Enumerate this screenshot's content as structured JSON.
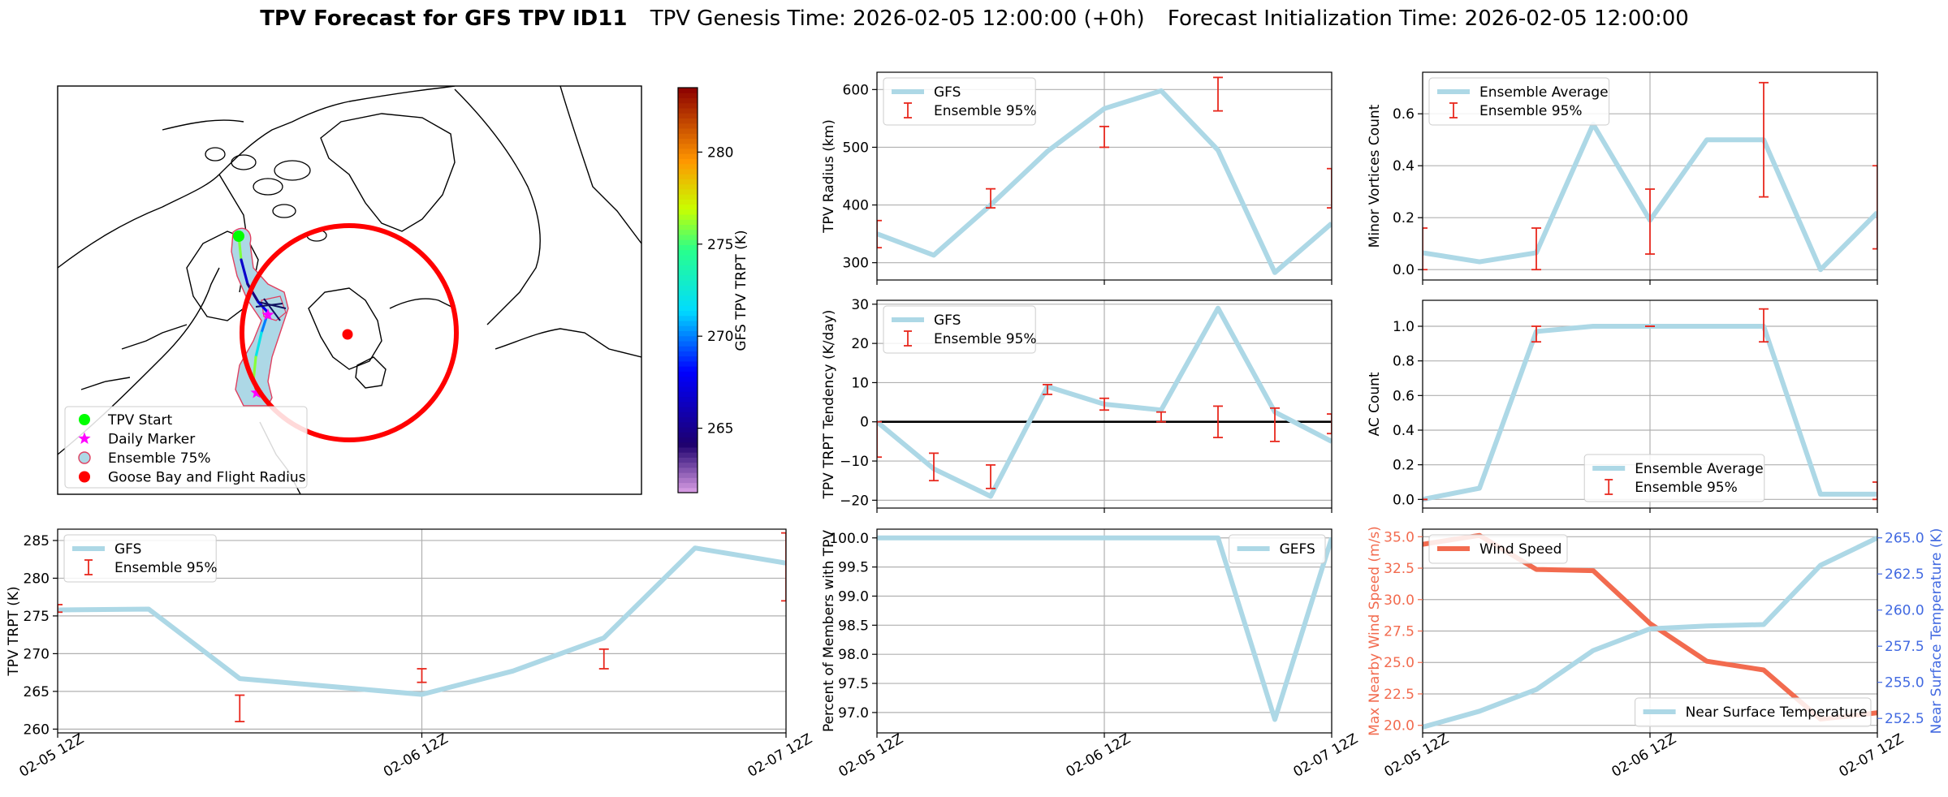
{
  "suptitle": {
    "bold": "TPV Forecast for GFS TPV ID11",
    "genesis": "TPV Genesis Time: 2026-02-05 12:00:00 (+0h)",
    "init": "Forecast Initialization Time: 2026-02-05 12:00:00"
  },
  "colors": {
    "gfs_line": "#add8e6",
    "errorbar": "#e8281e",
    "wind": "#f26b4f",
    "temp_axis": "#4169e1",
    "goose": "#ff0000",
    "start": "#00ff00",
    "marker": "#ff00ff",
    "ensemble_fill": "#add8e6",
    "ensemble_edge": "#e04060"
  },
  "map": {
    "colorbar": {
      "label": "GFS TPV TRPT (K)",
      "ticks": [
        {
          "v": 265,
          "t": "265"
        },
        {
          "v": 270,
          "t": "270"
        },
        {
          "v": 275,
          "t": "275"
        },
        {
          "v": 280,
          "t": "280"
        }
      ],
      "vmin": 261.5,
      "vmax": 283.5
    },
    "legend": [
      "TPV Start",
      "Daily Marker",
      "Ensemble 75%",
      "Goose Bay and Flight Radius"
    ]
  },
  "chart_data": [
    {
      "id": "trpt",
      "type": "line",
      "title": "",
      "xlabel": "",
      "ylabel": "TPV TRPT (K)",
      "x": [
        0,
        6,
        12,
        18,
        24,
        30,
        36,
        42,
        48
      ],
      "xticks": [
        {
          "v": 0,
          "t": "02-05 12Z"
        },
        {
          "v": 24,
          "t": "02-06 12Z"
        },
        {
          "v": 48,
          "t": "02-07 12Z"
        }
      ],
      "xlim": [
        0,
        48
      ],
      "ylim": [
        259.5,
        286.5
      ],
      "yticks": [
        {
          "v": 260,
          "t": "260"
        },
        {
          "v": 265,
          "t": "265"
        },
        {
          "v": 270,
          "t": "270"
        },
        {
          "v": 275,
          "t": "275"
        },
        {
          "v": 280,
          "t": "280"
        },
        {
          "v": 285,
          "t": "285"
        }
      ],
      "series": [
        {
          "name": "GFS",
          "values": [
            275.8,
            275.9,
            266.7,
            null,
            264.6,
            267.7,
            272.1,
            284.0,
            282.0
          ]
        }
      ],
      "errorbars": {
        "name": "Ensemble 95%",
        "x": [
          0,
          12,
          24,
          36,
          48
        ],
        "low": [
          275.5,
          261.0,
          266.2,
          268.0,
          277.0
        ],
        "high": [
          276.5,
          264.5,
          268.0,
          270.6,
          286.0
        ]
      },
      "legend": "upper left"
    },
    {
      "id": "radius",
      "type": "line",
      "title": "",
      "xlabel": "",
      "ylabel": "TPV Radius (km)",
      "x": [
        0,
        6,
        12,
        18,
        24,
        30,
        36,
        42,
        48
      ],
      "xticks": [
        {
          "v": 0,
          "t": ""
        },
        {
          "v": 24,
          "t": ""
        },
        {
          "v": 48,
          "t": ""
        }
      ],
      "xlim": [
        0,
        48
      ],
      "ylim": [
        270,
        630
      ],
      "yticks": [
        {
          "v": 300,
          "t": "300"
        },
        {
          "v": 400,
          "t": "400"
        },
        {
          "v": 500,
          "t": "500"
        },
        {
          "v": 600,
          "t": "600"
        }
      ],
      "series": [
        {
          "name": "GFS",
          "values": [
            350,
            313,
            400,
            493,
            567,
            598,
            495,
            283,
            368
          ]
        }
      ],
      "errorbars": {
        "name": "Ensemble 95%",
        "x": [
          0,
          12,
          24,
          36,
          48
        ],
        "low": [
          326,
          395,
          500,
          563,
          395
        ],
        "high": [
          373,
          428,
          536,
          621,
          463
        ]
      },
      "legend": "upper left"
    },
    {
      "id": "tendency",
      "type": "line",
      "title": "",
      "xlabel": "",
      "ylabel": "TPV TRPT Tendency (K/day)",
      "x": [
        0,
        6,
        12,
        18,
        24,
        30,
        36,
        42,
        48
      ],
      "xticks": [
        {
          "v": 0,
          "t": ""
        },
        {
          "v": 24,
          "t": ""
        },
        {
          "v": 48,
          "t": ""
        }
      ],
      "xlim": [
        0,
        48
      ],
      "ylim": [
        -22,
        31
      ],
      "yticks": [
        {
          "v": -20,
          "t": "−20"
        },
        {
          "v": -10,
          "t": "−10"
        },
        {
          "v": 0,
          "t": "0"
        },
        {
          "v": 10,
          "t": "10"
        },
        {
          "v": 20,
          "t": "20"
        },
        {
          "v": 30,
          "t": "30"
        }
      ],
      "zeroline": true,
      "series": [
        {
          "name": "GFS",
          "values": [
            0,
            -12,
            -19,
            9,
            4.5,
            3,
            29,
            2.5,
            -5
          ]
        }
      ],
      "errorbars": {
        "name": "Ensemble 95%",
        "x": [
          0,
          6,
          12,
          18,
          24,
          30,
          36,
          42,
          48
        ],
        "low": [
          -9,
          -15,
          -17,
          7,
          3,
          0,
          -4,
          -5,
          -3
        ],
        "high": [
          0,
          -8,
          -11,
          9.5,
          6,
          2.5,
          4,
          3.5,
          2
        ]
      },
      "legend": "upper left"
    },
    {
      "id": "members",
      "type": "line",
      "title": "",
      "xlabel": "",
      "ylabel": "Percent of Members with TPV",
      "x": [
        0,
        6,
        12,
        18,
        24,
        30,
        36,
        42,
        48
      ],
      "xticks": [
        {
          "v": 0,
          "t": "02-05 12Z"
        },
        {
          "v": 24,
          "t": "02-06 12Z"
        },
        {
          "v": 48,
          "t": "02-07 12Z"
        }
      ],
      "xlim": [
        0,
        48
      ],
      "ylim": [
        96.65,
        100.15
      ],
      "yticks": [
        {
          "v": 97.0,
          "t": "97.0"
        },
        {
          "v": 97.5,
          "t": "97.5"
        },
        {
          "v": 98.0,
          "t": "98.0"
        },
        {
          "v": 98.5,
          "t": "98.5"
        },
        {
          "v": 99.0,
          "t": "99.0"
        },
        {
          "v": 99.5,
          "t": "99.5"
        },
        {
          "v": 100.0,
          "t": "100.0"
        }
      ],
      "series": [
        {
          "name": "GEFS",
          "values": [
            100,
            100,
            100,
            100,
            100,
            100,
            100,
            96.88,
            100
          ]
        }
      ],
      "legend": "upper right"
    },
    {
      "id": "minor",
      "type": "line",
      "title": "",
      "xlabel": "",
      "ylabel": "Minor Vortices Count",
      "x": [
        0,
        6,
        12,
        18,
        24,
        30,
        36,
        42,
        48
      ],
      "xticks": [
        {
          "v": 0,
          "t": ""
        },
        {
          "v": 24,
          "t": ""
        },
        {
          "v": 48,
          "t": ""
        }
      ],
      "xlim": [
        0,
        48
      ],
      "ylim": [
        -0.04,
        0.76
      ],
      "yticks": [
        {
          "v": 0.0,
          "t": "0.0"
        },
        {
          "v": 0.2,
          "t": "0.2"
        },
        {
          "v": 0.4,
          "t": "0.4"
        },
        {
          "v": 0.6,
          "t": "0.6"
        }
      ],
      "series": [
        {
          "name": "Ensemble Average",
          "values": [
            0.065,
            0.03,
            0.065,
            0.56,
            0.19,
            0.5,
            0.5,
            0.0,
            0.22
          ]
        }
      ],
      "errorbars": {
        "name": "Ensemble 95%",
        "x": [
          0,
          12,
          24,
          36,
          48
        ],
        "low": [
          0.0,
          0.0,
          0.06,
          0.28,
          0.08
        ],
        "high": [
          0.16,
          0.16,
          0.31,
          0.72,
          0.4
        ]
      },
      "legend": "upper left"
    },
    {
      "id": "ac",
      "type": "line",
      "title": "",
      "xlabel": "",
      "ylabel": "AC Count",
      "x": [
        0,
        6,
        12,
        18,
        24,
        30,
        36,
        42,
        48
      ],
      "xticks": [
        {
          "v": 0,
          "t": ""
        },
        {
          "v": 24,
          "t": ""
        },
        {
          "v": 48,
          "t": ""
        }
      ],
      "xlim": [
        0,
        48
      ],
      "ylim": [
        -0.05,
        1.15
      ],
      "yticks": [
        {
          "v": 0.0,
          "t": "0.0"
        },
        {
          "v": 0.2,
          "t": "0.2"
        },
        {
          "v": 0.4,
          "t": "0.4"
        },
        {
          "v": 0.6,
          "t": "0.6"
        },
        {
          "v": 0.8,
          "t": "0.8"
        },
        {
          "v": 1.0,
          "t": "1.0"
        }
      ],
      "series": [
        {
          "name": "Ensemble Average",
          "values": [
            0.0,
            0.065,
            0.97,
            1.0,
            1.0,
            1.0,
            1.0,
            0.03,
            0.03
          ]
        }
      ],
      "errorbars": {
        "name": "Ensemble 95%",
        "x": [
          0,
          12,
          24,
          36,
          48
        ],
        "low": [
          0.0,
          0.91,
          1.0,
          0.91,
          0.0
        ],
        "high": [
          0.0,
          1.0,
          1.0,
          1.1,
          0.1
        ]
      },
      "legend": "lower center"
    },
    {
      "id": "wind",
      "type": "line",
      "title": "",
      "xlabel": "",
      "ylabel": "Max Nearby Wind Speed (m/s)",
      "ylabel_right": "Near Surface Temperature (K)",
      "x": [
        0,
        6,
        12,
        18,
        24,
        30,
        36,
        42,
        48
      ],
      "xticks": [
        {
          "v": 0,
          "t": "02-05 12Z"
        },
        {
          "v": 24,
          "t": "02-06 12Z"
        },
        {
          "v": 48,
          "t": "02-07 12Z"
        }
      ],
      "xlim": [
        0,
        48
      ],
      "ylim": [
        19.4,
        35.6
      ],
      "ylim_right": [
        251.5,
        265.6
      ],
      "yticks": [
        {
          "v": 20.0,
          "t": "20.0"
        },
        {
          "v": 22.5,
          "t": "22.5"
        },
        {
          "v": 25.0,
          "t": "25.0"
        },
        {
          "v": 27.5,
          "t": "27.5"
        },
        {
          "v": 30.0,
          "t": "30.0"
        },
        {
          "v": 32.5,
          "t": "32.5"
        },
        {
          "v": 35.0,
          "t": "35.0"
        }
      ],
      "yticks_right": [
        {
          "v": 252.5,
          "t": "252.5"
        },
        {
          "v": 255.0,
          "t": "255.0"
        },
        {
          "v": 257.5,
          "t": "257.5"
        },
        {
          "v": 260.0,
          "t": "260.0"
        },
        {
          "v": 262.5,
          "t": "262.5"
        },
        {
          "v": 265.0,
          "t": "265.0"
        }
      ],
      "series": [
        {
          "name": "Wind Speed",
          "values": [
            34.4,
            35.1,
            32.4,
            32.3,
            28.1,
            25.1,
            24.4,
            20.5,
            21.0
          ]
        },
        {
          "name": "Near Surface Temperature",
          "values": [
            251.9,
            253.0,
            254.5,
            257.2,
            258.7,
            258.9,
            259.0,
            263.1,
            265.0
          ]
        }
      ]
    }
  ]
}
